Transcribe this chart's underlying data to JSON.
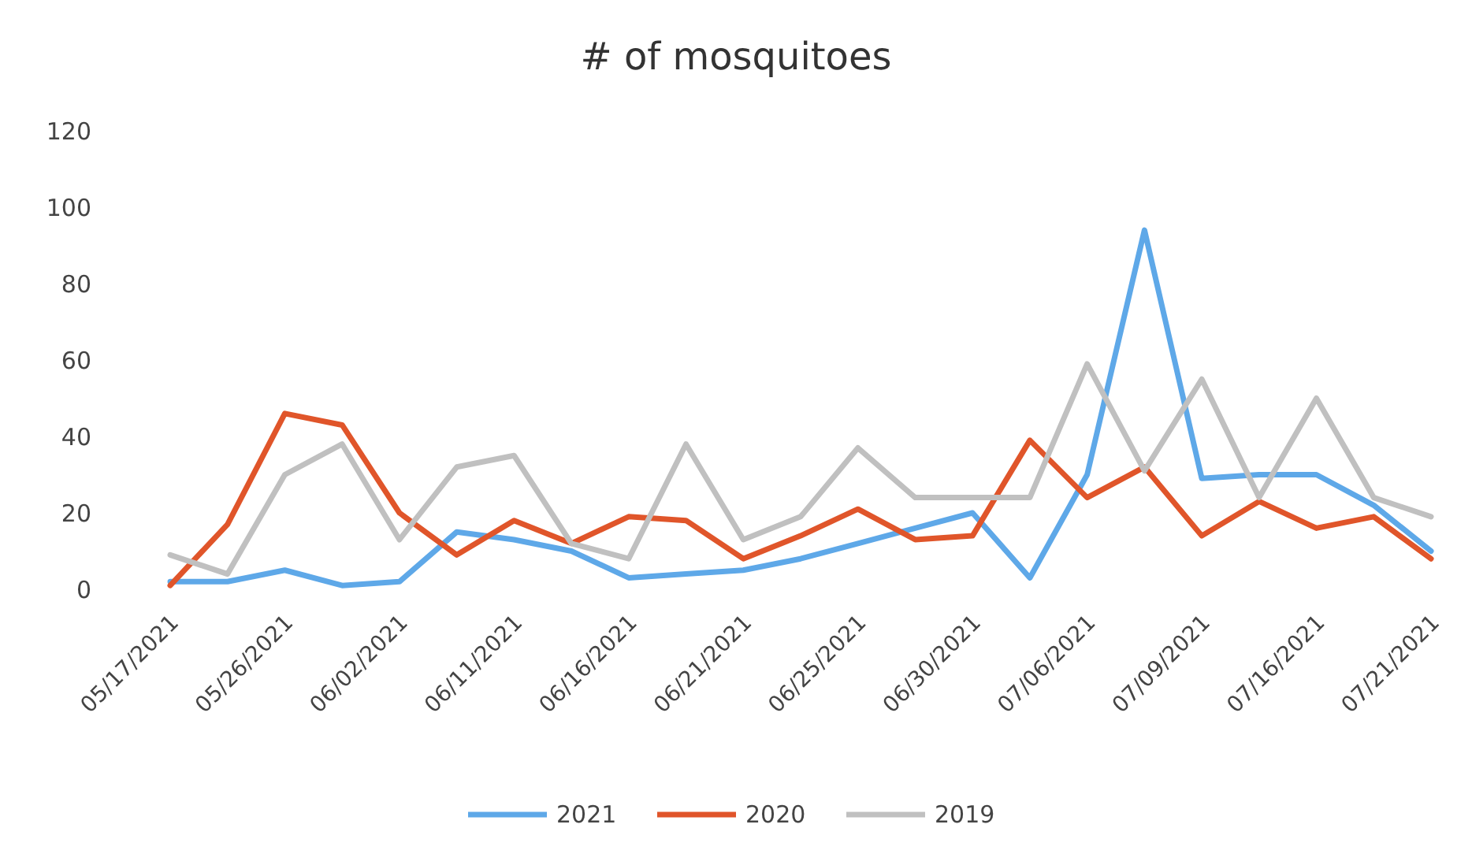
{
  "chart_data": {
    "type": "line",
    "title": "# of mosquitoes",
    "categories": [
      "05/17/2021",
      null,
      "05/26/2021",
      null,
      "06/02/2021",
      null,
      "06/11/2021",
      null,
      "06/16/2021",
      null,
      "06/21/2021",
      null,
      "06/25/2021",
      null,
      "06/30/2021",
      null,
      "07/06/2021",
      null,
      "07/09/2021",
      null,
      "07/16/2021",
      null,
      "07/21/2021"
    ],
    "ylim": [
      0,
      120
    ],
    "yticks": [
      0,
      20,
      40,
      60,
      80,
      100,
      120
    ],
    "grid": false,
    "legend": "bottom",
    "line_style": "solid",
    "marker": "none",
    "series": [
      {
        "name": "2021",
        "color": "#5ea8e8",
        "values": [
          2,
          2,
          5,
          1,
          2,
          15,
          13,
          10,
          3,
          4,
          5,
          8,
          12,
          16,
          20,
          3,
          30,
          94,
          29,
          30,
          30,
          22,
          10
        ]
      },
      {
        "name": "2020",
        "color": "#e0552a",
        "values": [
          1,
          17,
          46,
          43,
          20,
          9,
          18,
          12,
          19,
          18,
          8,
          14,
          21,
          13,
          14,
          39,
          24,
          32,
          14,
          23,
          16,
          19,
          8
        ]
      },
      {
        "name": "2019",
        "color": "#c0c0c0",
        "values": [
          9,
          4,
          30,
          38,
          13,
          32,
          35,
          12,
          8,
          38,
          13,
          19,
          37,
          24,
          24,
          24,
          59,
          31,
          55,
          24,
          50,
          24,
          19
        ]
      }
    ]
  }
}
